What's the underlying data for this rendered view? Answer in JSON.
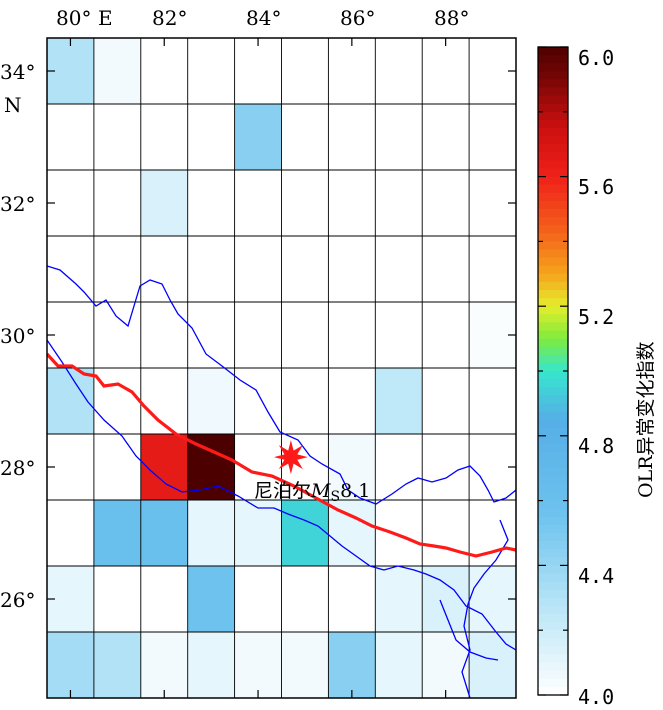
{
  "map": {
    "lon_labels": [
      "80°",
      "82°",
      "84°",
      "86°",
      "88°"
    ],
    "lon_hemisphere": "E",
    "lat_labels": [
      "34°",
      "32°",
      "30°",
      "28°",
      "26°"
    ],
    "lat_hemisphere": "N",
    "lon_range": [
      79.5,
      89.5
    ],
    "lat_range": [
      24.5,
      34.5
    ],
    "cell_size_deg": 1,
    "earthquake": {
      "label": "尼泊尔",
      "mag_symbol": "M",
      "mag_sub": "S",
      "magnitude": "8.1",
      "lon": 84.7,
      "lat": 28.15,
      "marker": "red-star-icon"
    },
    "border_color": "#0000ff",
    "fault_color": "#ff1a1a",
    "cells": [
      {
        "col": 0,
        "row": 0,
        "v": 4.3
      },
      {
        "col": 1,
        "row": 0,
        "v": 4.05
      },
      {
        "col": 4,
        "row": 1,
        "v": 4.45
      },
      {
        "col": 2,
        "row": 2,
        "v": 4.15
      },
      {
        "col": 9,
        "row": 4,
        "v": 4.02
      },
      {
        "col": 0,
        "row": 5,
        "v": 4.3
      },
      {
        "col": 7,
        "row": 5,
        "v": 4.25
      },
      {
        "col": 3,
        "row": 5,
        "v": 4.06
      },
      {
        "col": 2,
        "row": 6,
        "v": 5.65
      },
      {
        "col": 3,
        "row": 6,
        "v": 6.0
      },
      {
        "col": 6,
        "row": 6,
        "v": 4.05
      },
      {
        "col": 1,
        "row": 7,
        "v": 4.6
      },
      {
        "col": 2,
        "row": 7,
        "v": 4.6
      },
      {
        "col": 3,
        "row": 7,
        "v": 4.1
      },
      {
        "col": 4,
        "row": 7,
        "v": 4.1
      },
      {
        "col": 5,
        "row": 7,
        "v": 4.95
      },
      {
        "col": 6,
        "row": 7,
        "v": 4.1
      },
      {
        "col": 0,
        "row": 8,
        "v": 4.1
      },
      {
        "col": 3,
        "row": 8,
        "v": 4.55
      },
      {
        "col": 7,
        "row": 8,
        "v": 4.1
      },
      {
        "col": 8,
        "row": 8,
        "v": 4.15
      },
      {
        "col": 9,
        "row": 8,
        "v": 4.1
      },
      {
        "col": 0,
        "row": 9,
        "v": 4.35
      },
      {
        "col": 1,
        "row": 9,
        "v": 4.3
      },
      {
        "col": 2,
        "row": 9,
        "v": 4.05
      },
      {
        "col": 3,
        "row": 9,
        "v": 4.1
      },
      {
        "col": 4,
        "row": 9,
        "v": 4.05
      },
      {
        "col": 5,
        "row": 9,
        "v": 4.05
      },
      {
        "col": 6,
        "row": 9,
        "v": 4.45
      },
      {
        "col": 7,
        "row": 9,
        "v": 4.1
      },
      {
        "col": 8,
        "row": 9,
        "v": 4.05
      },
      {
        "col": 9,
        "row": 9,
        "v": 4.15
      }
    ]
  },
  "colorbar": {
    "title": "OLR异常变化指数",
    "tick_labels": [
      "6.0",
      "5.6",
      "5.2",
      "4.8",
      "4.4",
      "4.0"
    ],
    "range": [
      4.0,
      6.0
    ],
    "stops": [
      {
        "v": 4.0,
        "color": "#ffffff"
      },
      {
        "v": 4.25,
        "color": "#bfe8f8"
      },
      {
        "v": 4.55,
        "color": "#6ec3ee"
      },
      {
        "v": 4.85,
        "color": "#55aee6"
      },
      {
        "v": 5.0,
        "color": "#36e6cf"
      },
      {
        "v": 5.1,
        "color": "#80ec3c"
      },
      {
        "v": 5.2,
        "color": "#e6ec2c"
      },
      {
        "v": 5.3,
        "color": "#f6a31c"
      },
      {
        "v": 5.45,
        "color": "#f35a1a"
      },
      {
        "v": 5.6,
        "color": "#f0201a"
      },
      {
        "v": 5.75,
        "color": "#cc1010"
      },
      {
        "v": 5.9,
        "color": "#7a0606"
      },
      {
        "v": 6.0,
        "color": "#4d0000"
      }
    ]
  }
}
